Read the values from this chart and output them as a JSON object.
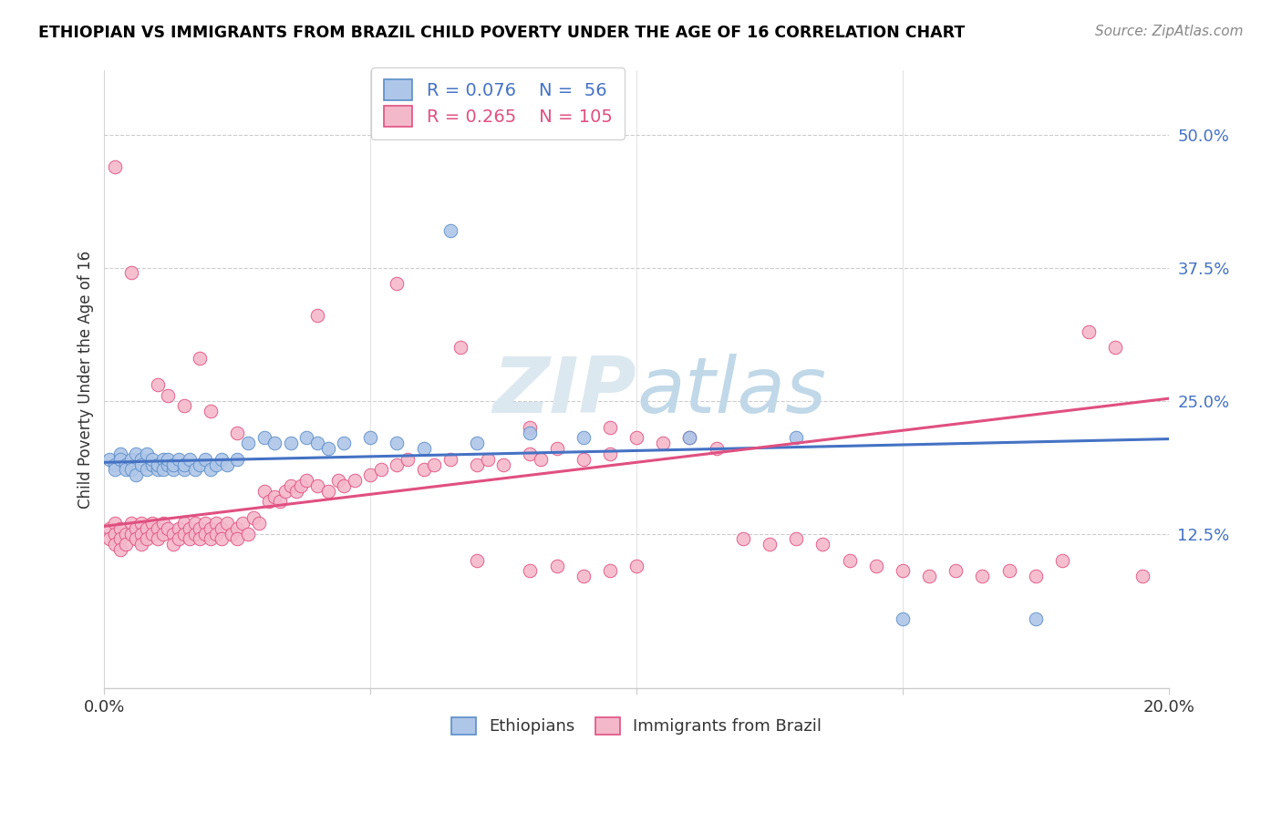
{
  "title": "ETHIOPIAN VS IMMIGRANTS FROM BRAZIL CHILD POVERTY UNDER THE AGE OF 16 CORRELATION CHART",
  "source": "Source: ZipAtlas.com",
  "ylabel": "Child Poverty Under the Age of 16",
  "xlim": [
    0.0,
    0.2
  ],
  "ylim": [
    -0.02,
    0.56
  ],
  "xticks": [
    0.0,
    0.05,
    0.1,
    0.15,
    0.2
  ],
  "yticks": [
    0.125,
    0.25,
    0.375,
    0.5
  ],
  "ytick_labels": [
    "12.5%",
    "25.0%",
    "37.5%",
    "50.0%"
  ],
  "blue_color": "#aec6e8",
  "pink_color": "#f4b8cb",
  "blue_edge_color": "#5b8dc8",
  "pink_edge_color": "#e05080",
  "blue_line_color": "#4472c4",
  "pink_line_color": "#e05080",
  "watermark_color": "#d0dce8",
  "blue_line": [
    0.0,
    0.192,
    0.2,
    0.214
  ],
  "pink_line": [
    0.0,
    0.132,
    0.2,
    0.252
  ],
  "blue_scatter": [
    [
      0.001,
      0.195
    ],
    [
      0.002,
      0.19
    ],
    [
      0.002,
      0.185
    ],
    [
      0.003,
      0.2
    ],
    [
      0.003,
      0.195
    ],
    [
      0.004,
      0.19
    ],
    [
      0.004,
      0.185
    ],
    [
      0.005,
      0.195
    ],
    [
      0.005,
      0.185
    ],
    [
      0.006,
      0.2
    ],
    [
      0.006,
      0.18
    ],
    [
      0.007,
      0.195
    ],
    [
      0.007,
      0.19
    ],
    [
      0.008,
      0.185
    ],
    [
      0.008,
      0.2
    ],
    [
      0.009,
      0.19
    ],
    [
      0.009,
      0.195
    ],
    [
      0.01,
      0.185
    ],
    [
      0.01,
      0.19
    ],
    [
      0.011,
      0.195
    ],
    [
      0.011,
      0.185
    ],
    [
      0.012,
      0.19
    ],
    [
      0.012,
      0.195
    ],
    [
      0.013,
      0.185
    ],
    [
      0.013,
      0.19
    ],
    [
      0.014,
      0.195
    ],
    [
      0.015,
      0.185
    ],
    [
      0.015,
      0.19
    ],
    [
      0.016,
      0.195
    ],
    [
      0.017,
      0.185
    ],
    [
      0.018,
      0.19
    ],
    [
      0.019,
      0.195
    ],
    [
      0.02,
      0.185
    ],
    [
      0.021,
      0.19
    ],
    [
      0.022,
      0.195
    ],
    [
      0.023,
      0.19
    ],
    [
      0.025,
      0.195
    ],
    [
      0.027,
      0.21
    ],
    [
      0.03,
      0.215
    ],
    [
      0.032,
      0.21
    ],
    [
      0.035,
      0.21
    ],
    [
      0.038,
      0.215
    ],
    [
      0.04,
      0.21
    ],
    [
      0.042,
      0.205
    ],
    [
      0.045,
      0.21
    ],
    [
      0.05,
      0.215
    ],
    [
      0.055,
      0.21
    ],
    [
      0.06,
      0.205
    ],
    [
      0.065,
      0.41
    ],
    [
      0.07,
      0.21
    ],
    [
      0.08,
      0.22
    ],
    [
      0.09,
      0.215
    ],
    [
      0.11,
      0.215
    ],
    [
      0.13,
      0.215
    ],
    [
      0.15,
      0.045
    ],
    [
      0.175,
      0.045
    ]
  ],
  "pink_scatter": [
    [
      0.001,
      0.13
    ],
    [
      0.001,
      0.12
    ],
    [
      0.002,
      0.135
    ],
    [
      0.002,
      0.125
    ],
    [
      0.002,
      0.115
    ],
    [
      0.003,
      0.13
    ],
    [
      0.003,
      0.12
    ],
    [
      0.003,
      0.11
    ],
    [
      0.004,
      0.125
    ],
    [
      0.004,
      0.115
    ],
    [
      0.005,
      0.135
    ],
    [
      0.005,
      0.125
    ],
    [
      0.006,
      0.13
    ],
    [
      0.006,
      0.12
    ],
    [
      0.007,
      0.135
    ],
    [
      0.007,
      0.125
    ],
    [
      0.007,
      0.115
    ],
    [
      0.008,
      0.13
    ],
    [
      0.008,
      0.12
    ],
    [
      0.009,
      0.135
    ],
    [
      0.009,
      0.125
    ],
    [
      0.01,
      0.13
    ],
    [
      0.01,
      0.12
    ],
    [
      0.011,
      0.135
    ],
    [
      0.011,
      0.125
    ],
    [
      0.012,
      0.13
    ],
    [
      0.013,
      0.125
    ],
    [
      0.013,
      0.115
    ],
    [
      0.014,
      0.13
    ],
    [
      0.014,
      0.12
    ],
    [
      0.015,
      0.135
    ],
    [
      0.015,
      0.125
    ],
    [
      0.016,
      0.13
    ],
    [
      0.016,
      0.12
    ],
    [
      0.017,
      0.135
    ],
    [
      0.017,
      0.125
    ],
    [
      0.018,
      0.13
    ],
    [
      0.018,
      0.12
    ],
    [
      0.019,
      0.135
    ],
    [
      0.019,
      0.125
    ],
    [
      0.02,
      0.13
    ],
    [
      0.02,
      0.12
    ],
    [
      0.021,
      0.135
    ],
    [
      0.021,
      0.125
    ],
    [
      0.022,
      0.13
    ],
    [
      0.022,
      0.12
    ],
    [
      0.023,
      0.135
    ],
    [
      0.024,
      0.125
    ],
    [
      0.025,
      0.13
    ],
    [
      0.025,
      0.12
    ],
    [
      0.026,
      0.135
    ],
    [
      0.027,
      0.125
    ],
    [
      0.028,
      0.14
    ],
    [
      0.029,
      0.135
    ],
    [
      0.03,
      0.165
    ],
    [
      0.031,
      0.155
    ],
    [
      0.032,
      0.16
    ],
    [
      0.033,
      0.155
    ],
    [
      0.034,
      0.165
    ],
    [
      0.035,
      0.17
    ],
    [
      0.036,
      0.165
    ],
    [
      0.037,
      0.17
    ],
    [
      0.038,
      0.175
    ],
    [
      0.04,
      0.17
    ],
    [
      0.042,
      0.165
    ],
    [
      0.044,
      0.175
    ],
    [
      0.045,
      0.17
    ],
    [
      0.047,
      0.175
    ],
    [
      0.05,
      0.18
    ],
    [
      0.052,
      0.185
    ],
    [
      0.055,
      0.19
    ],
    [
      0.057,
      0.195
    ],
    [
      0.06,
      0.185
    ],
    [
      0.062,
      0.19
    ],
    [
      0.065,
      0.195
    ],
    [
      0.067,
      0.3
    ],
    [
      0.07,
      0.19
    ],
    [
      0.072,
      0.195
    ],
    [
      0.075,
      0.19
    ],
    [
      0.08,
      0.2
    ],
    [
      0.082,
      0.195
    ],
    [
      0.085,
      0.205
    ],
    [
      0.09,
      0.195
    ],
    [
      0.095,
      0.2
    ],
    [
      0.1,
      0.215
    ],
    [
      0.105,
      0.21
    ],
    [
      0.11,
      0.215
    ],
    [
      0.115,
      0.205
    ],
    [
      0.002,
      0.47
    ],
    [
      0.005,
      0.37
    ],
    [
      0.01,
      0.265
    ],
    [
      0.012,
      0.255
    ],
    [
      0.015,
      0.245
    ],
    [
      0.018,
      0.29
    ],
    [
      0.02,
      0.24
    ],
    [
      0.025,
      0.22
    ],
    [
      0.04,
      0.33
    ],
    [
      0.055,
      0.36
    ],
    [
      0.08,
      0.225
    ],
    [
      0.095,
      0.225
    ],
    [
      0.12,
      0.12
    ],
    [
      0.125,
      0.115
    ],
    [
      0.13,
      0.12
    ],
    [
      0.135,
      0.115
    ],
    [
      0.14,
      0.1
    ],
    [
      0.145,
      0.095
    ],
    [
      0.15,
      0.09
    ],
    [
      0.155,
      0.085
    ],
    [
      0.16,
      0.09
    ],
    [
      0.165,
      0.085
    ],
    [
      0.17,
      0.09
    ],
    [
      0.175,
      0.085
    ],
    [
      0.18,
      0.1
    ],
    [
      0.185,
      0.315
    ],
    [
      0.19,
      0.3
    ],
    [
      0.195,
      0.085
    ],
    [
      0.07,
      0.1
    ],
    [
      0.08,
      0.09
    ],
    [
      0.085,
      0.095
    ],
    [
      0.09,
      0.085
    ],
    [
      0.095,
      0.09
    ],
    [
      0.1,
      0.095
    ]
  ]
}
